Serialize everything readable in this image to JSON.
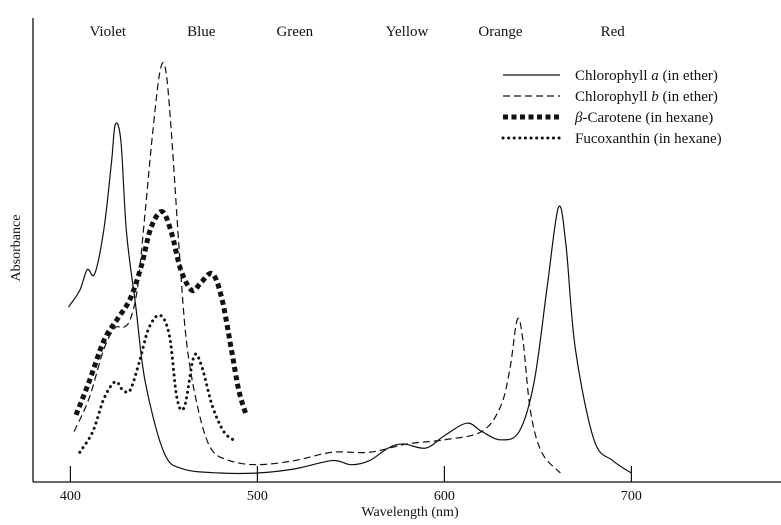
{
  "chart_data": {
    "type": "line",
    "title": "",
    "xlabel": "Wavelength (nm)",
    "ylabel": "Absorbance",
    "xlim": [
      380,
      780
    ],
    "ylim": [
      0,
      1.0
    ],
    "x_ticks": [
      400,
      500,
      600,
      700
    ],
    "grid": false,
    "legend_position": "top-right",
    "color_bands": [
      {
        "label": "Violet",
        "x": 420
      },
      {
        "label": "Blue",
        "x": 470
      },
      {
        "label": "Green",
        "x": 520
      },
      {
        "label": "Yellow",
        "x": 580
      },
      {
        "label": "Orange",
        "x": 630
      },
      {
        "label": "Red",
        "x": 690
      }
    ],
    "series": [
      {
        "name": "Chlorophyll a (in ether)",
        "name_prefix": "Chlorophyll ",
        "name_italic": "a",
        "name_suffix": " (in ether)",
        "style": "solid",
        "x": [
          399,
          405,
          409,
          413,
          418,
          422,
          424,
          427,
          430,
          435,
          440,
          450,
          460,
          480,
          500,
          520,
          540,
          550,
          560,
          570,
          578,
          590,
          600,
          612,
          620,
          630,
          640,
          648,
          655,
          661,
          665,
          670,
          680,
          690,
          700
        ],
        "values": [
          0.4,
          0.44,
          0.49,
          0.48,
          0.59,
          0.75,
          0.84,
          0.8,
          0.58,
          0.4,
          0.22,
          0.05,
          0.01,
          0.0,
          0.0,
          0.01,
          0.03,
          0.02,
          0.03,
          0.06,
          0.07,
          0.06,
          0.09,
          0.12,
          0.1,
          0.08,
          0.1,
          0.22,
          0.45,
          0.64,
          0.55,
          0.3,
          0.08,
          0.03,
          0.0
        ]
      },
      {
        "name": "Chlorophyll b (in ether)",
        "name_prefix": "Chlorophyll ",
        "name_italic": "b",
        "name_suffix": " (in ether)",
        "style": "dashed",
        "x": [
          402,
          410,
          418,
          424,
          428,
          432,
          436,
          440,
          444,
          448,
          451,
          454,
          458,
          462,
          468,
          475,
          485,
          500,
          520,
          540,
          560,
          580,
          600,
          620,
          630,
          635,
          639,
          642,
          646,
          652,
          662
        ],
        "values": [
          0.1,
          0.18,
          0.3,
          0.35,
          0.35,
          0.37,
          0.45,
          0.63,
          0.82,
          0.97,
          0.97,
          0.82,
          0.55,
          0.32,
          0.16,
          0.06,
          0.03,
          0.02,
          0.03,
          0.05,
          0.05,
          0.07,
          0.08,
          0.1,
          0.16,
          0.25,
          0.37,
          0.32,
          0.15,
          0.05,
          0.0
        ]
      },
      {
        "name": "β-Carotene (in hexane)",
        "name_prefix": "",
        "name_italic": "β",
        "name_suffix": "-Carotene (in hexane)",
        "style": "heavy-dotted",
        "x": [
          403,
          410,
          418,
          425,
          432,
          438,
          443,
          449,
          454,
          459,
          465,
          470,
          476,
          481,
          486,
          490,
          494
        ],
        "values": [
          0.14,
          0.22,
          0.32,
          0.37,
          0.42,
          0.5,
          0.59,
          0.63,
          0.58,
          0.49,
          0.44,
          0.46,
          0.48,
          0.42,
          0.3,
          0.2,
          0.14
        ]
      },
      {
        "name": "Fucoxanthin (in hexane)",
        "name_prefix": "Fucoxanthin (in hexane)",
        "name_italic": "",
        "name_suffix": "",
        "style": "dotted",
        "x": [
          405,
          412,
          418,
          424,
          428,
          432,
          437,
          442,
          448,
          453,
          457,
          461,
          466,
          470,
          476,
          482,
          487
        ],
        "values": [
          0.05,
          0.1,
          0.18,
          0.22,
          0.2,
          0.2,
          0.27,
          0.35,
          0.38,
          0.33,
          0.18,
          0.16,
          0.28,
          0.26,
          0.16,
          0.1,
          0.08
        ]
      }
    ]
  }
}
